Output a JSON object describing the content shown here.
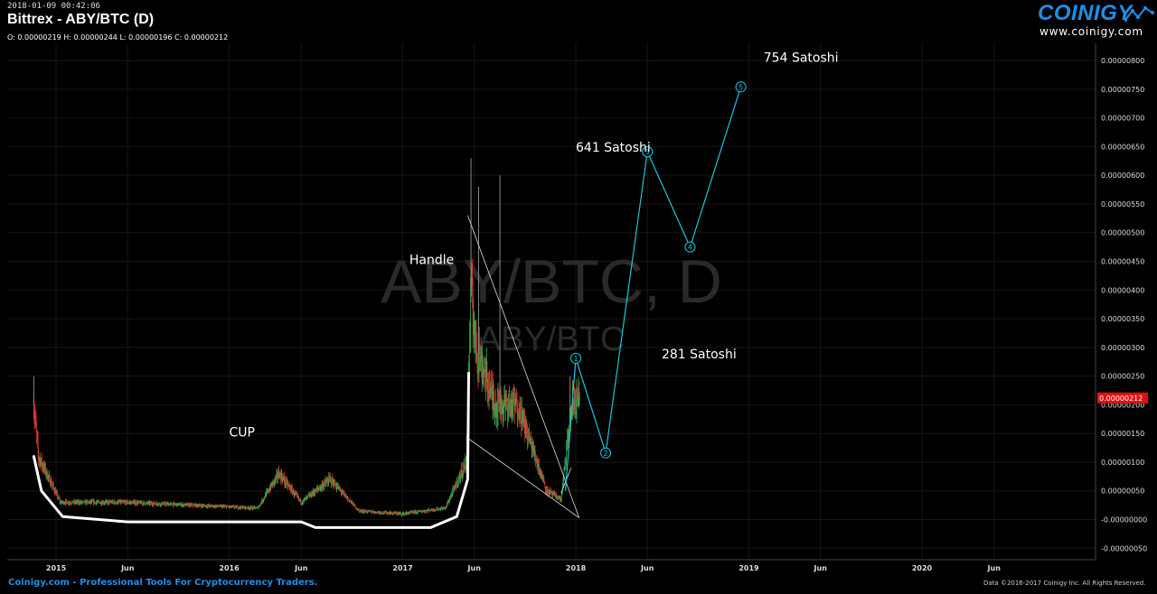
{
  "header": {
    "timestamp": "2018-01-09 00:42:06",
    "title": "Bittrex - ABY/BTC (D)",
    "ohlc": "O: 0.00000219 H: 0.00000244 L: 0.00000196 C: 0.00000212"
  },
  "logo": {
    "wordmark": "COINIGY",
    "url": "www.coinigy.com"
  },
  "watermark": {
    "main": "ABY/BTC, D",
    "sub": "ABY/BTC"
  },
  "footer": {
    "left": "Coinigy.com - Professional Tools For Cryptocurrency Traders.",
    "right": "Data ©2016-2017 Coinigy Inc. All Rights Reserved."
  },
  "chart_data": {
    "type": "candlestick",
    "instrument": "ABY/BTC",
    "exchange": "Bittrex",
    "timeframe": "D",
    "last_price": "0.00000212",
    "last_price_color": "#e01010",
    "y_axis": {
      "range": [
        -7e-08,
        8.3e-07
      ],
      "ticks": [
        "0.00000800",
        "0.00000750",
        "0.00000700",
        "0.00000650",
        "0.00000600",
        "0.00000550",
        "0.00000500",
        "0.00000450",
        "0.00000400",
        "0.00000350",
        "0.00000300",
        "0.00000250",
        "0.00000200",
        "0.00000150",
        "0.00000100",
        "0.00000050",
        "-0.00000000",
        "-0.00000050"
      ]
    },
    "x_axis": {
      "range": [
        "2014-09-20",
        "2021-01-01"
      ],
      "ticks": [
        {
          "label": "2015",
          "date": "2015-01-01"
        },
        {
          "label": "Jun",
          "date": "2015-06-01"
        },
        {
          "label": "2016",
          "date": "2016-01-01"
        },
        {
          "label": "Jun",
          "date": "2016-06-01"
        },
        {
          "label": "2017",
          "date": "2017-01-01"
        },
        {
          "label": "Jun",
          "date": "2017-06-01"
        },
        {
          "label": "2018",
          "date": "2018-01-01"
        },
        {
          "label": "Jun",
          "date": "2018-06-01"
        },
        {
          "label": "2019",
          "date": "2019-01-01"
        },
        {
          "label": "Jun",
          "date": "2019-06-01"
        },
        {
          "label": "2020",
          "date": "2020-01-01"
        },
        {
          "label": "Jun",
          "date": "2020-06-01"
        }
      ]
    },
    "grid": true,
    "price_path": [
      {
        "date": "2014-11-15",
        "price": 2e-07
      },
      {
        "date": "2014-11-25",
        "price": 1.1e-07
      },
      {
        "date": "2015-01-10",
        "price": 3e-08
      },
      {
        "date": "2015-06-01",
        "price": 3e-08
      },
      {
        "date": "2016-03-01",
        "price": 2e-08
      },
      {
        "date": "2016-04-15",
        "price": 8e-08
      },
      {
        "date": "2016-06-01",
        "price": 3e-08
      },
      {
        "date": "2016-08-01",
        "price": 7e-08
      },
      {
        "date": "2016-10-01",
        "price": 1.5e-08
      },
      {
        "date": "2017-01-01",
        "price": 1e-08
      },
      {
        "date": "2017-04-01",
        "price": 2e-08
      },
      {
        "date": "2017-05-15",
        "price": 1e-07
      },
      {
        "date": "2017-05-25",
        "price": 4e-07
      },
      {
        "date": "2017-06-05",
        "price": 3e-07
      },
      {
        "date": "2017-07-15",
        "price": 2e-07
      },
      {
        "date": "2017-09-01",
        "price": 2e-07
      },
      {
        "date": "2017-11-01",
        "price": 5e-08
      },
      {
        "date": "2017-12-01",
        "price": 3.5e-08
      },
      {
        "date": "2017-12-15",
        "price": 1.4e-07
      },
      {
        "date": "2017-12-25",
        "price": 2e-07
      },
      {
        "date": "2018-01-09",
        "price": 2.12e-07
      }
    ],
    "spikes": [
      {
        "date": "2014-11-15",
        "high": 2.5e-07
      },
      {
        "date": "2017-05-25",
        "high": 6.3e-07
      },
      {
        "date": "2017-06-10",
        "high": 5.8e-07
      },
      {
        "date": "2017-07-25",
        "high": 6e-07
      },
      {
        "date": "2017-12-20",
        "high": 2.5e-07
      }
    ],
    "annotations": {
      "text": [
        {
          "label": "CUP",
          "date": "2016-01-01",
          "price": 1.45e-07
        },
        {
          "label": "Handle",
          "date": "2017-01-15",
          "price": 4.45e-07
        },
        {
          "label": "281 Satoshi",
          "date": "2018-07-01",
          "price": 2.81e-07
        },
        {
          "label": "641 Satoshi",
          "date": "2018-01-01",
          "price": 6.41e-07
        },
        {
          "label": "754 Satoshi",
          "date": "2019-02-01",
          "price": 7.98e-07
        }
      ],
      "wave_points": [
        {
          "label": "1",
          "date": "2018-01-01",
          "price": 2.81e-07
        },
        {
          "label": "2",
          "date": "2018-03-05",
          "price": 1.16e-07
        },
        {
          "label": "3",
          "date": "2018-06-01",
          "price": 6.41e-07
        },
        {
          "label": "4",
          "date": "2018-08-30",
          "price": 4.75e-07
        },
        {
          "label": "5",
          "date": "2018-12-15",
          "price": 7.54e-07
        }
      ],
      "wave_color": "#1ac8d8",
      "cup_color": "#ffffff",
      "triangle_color": "#e0e0e0"
    }
  }
}
